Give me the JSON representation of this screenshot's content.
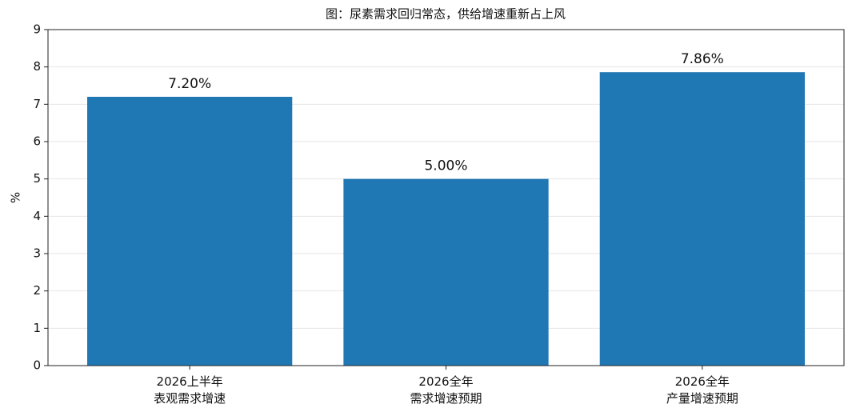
{
  "chart_data": {
    "type": "bar",
    "title": "图：尿素需求回归常态，供给增速重新占上风",
    "y_label": "%",
    "categories": [
      "2026上半年\n表观需求增速",
      "2026全年\n需求增速预期",
      "2026全年\n产量增速预期"
    ],
    "values": [
      7.2,
      5.0,
      7.86
    ],
    "value_labels": [
      "7.20%",
      "5.00%",
      "7.86%"
    ],
    "color": "#1f77b4",
    "ylim": [
      0,
      9
    ],
    "yticks": [
      0,
      1,
      2,
      3,
      4,
      5,
      6,
      7,
      8,
      9
    ],
    "grid": true
  }
}
